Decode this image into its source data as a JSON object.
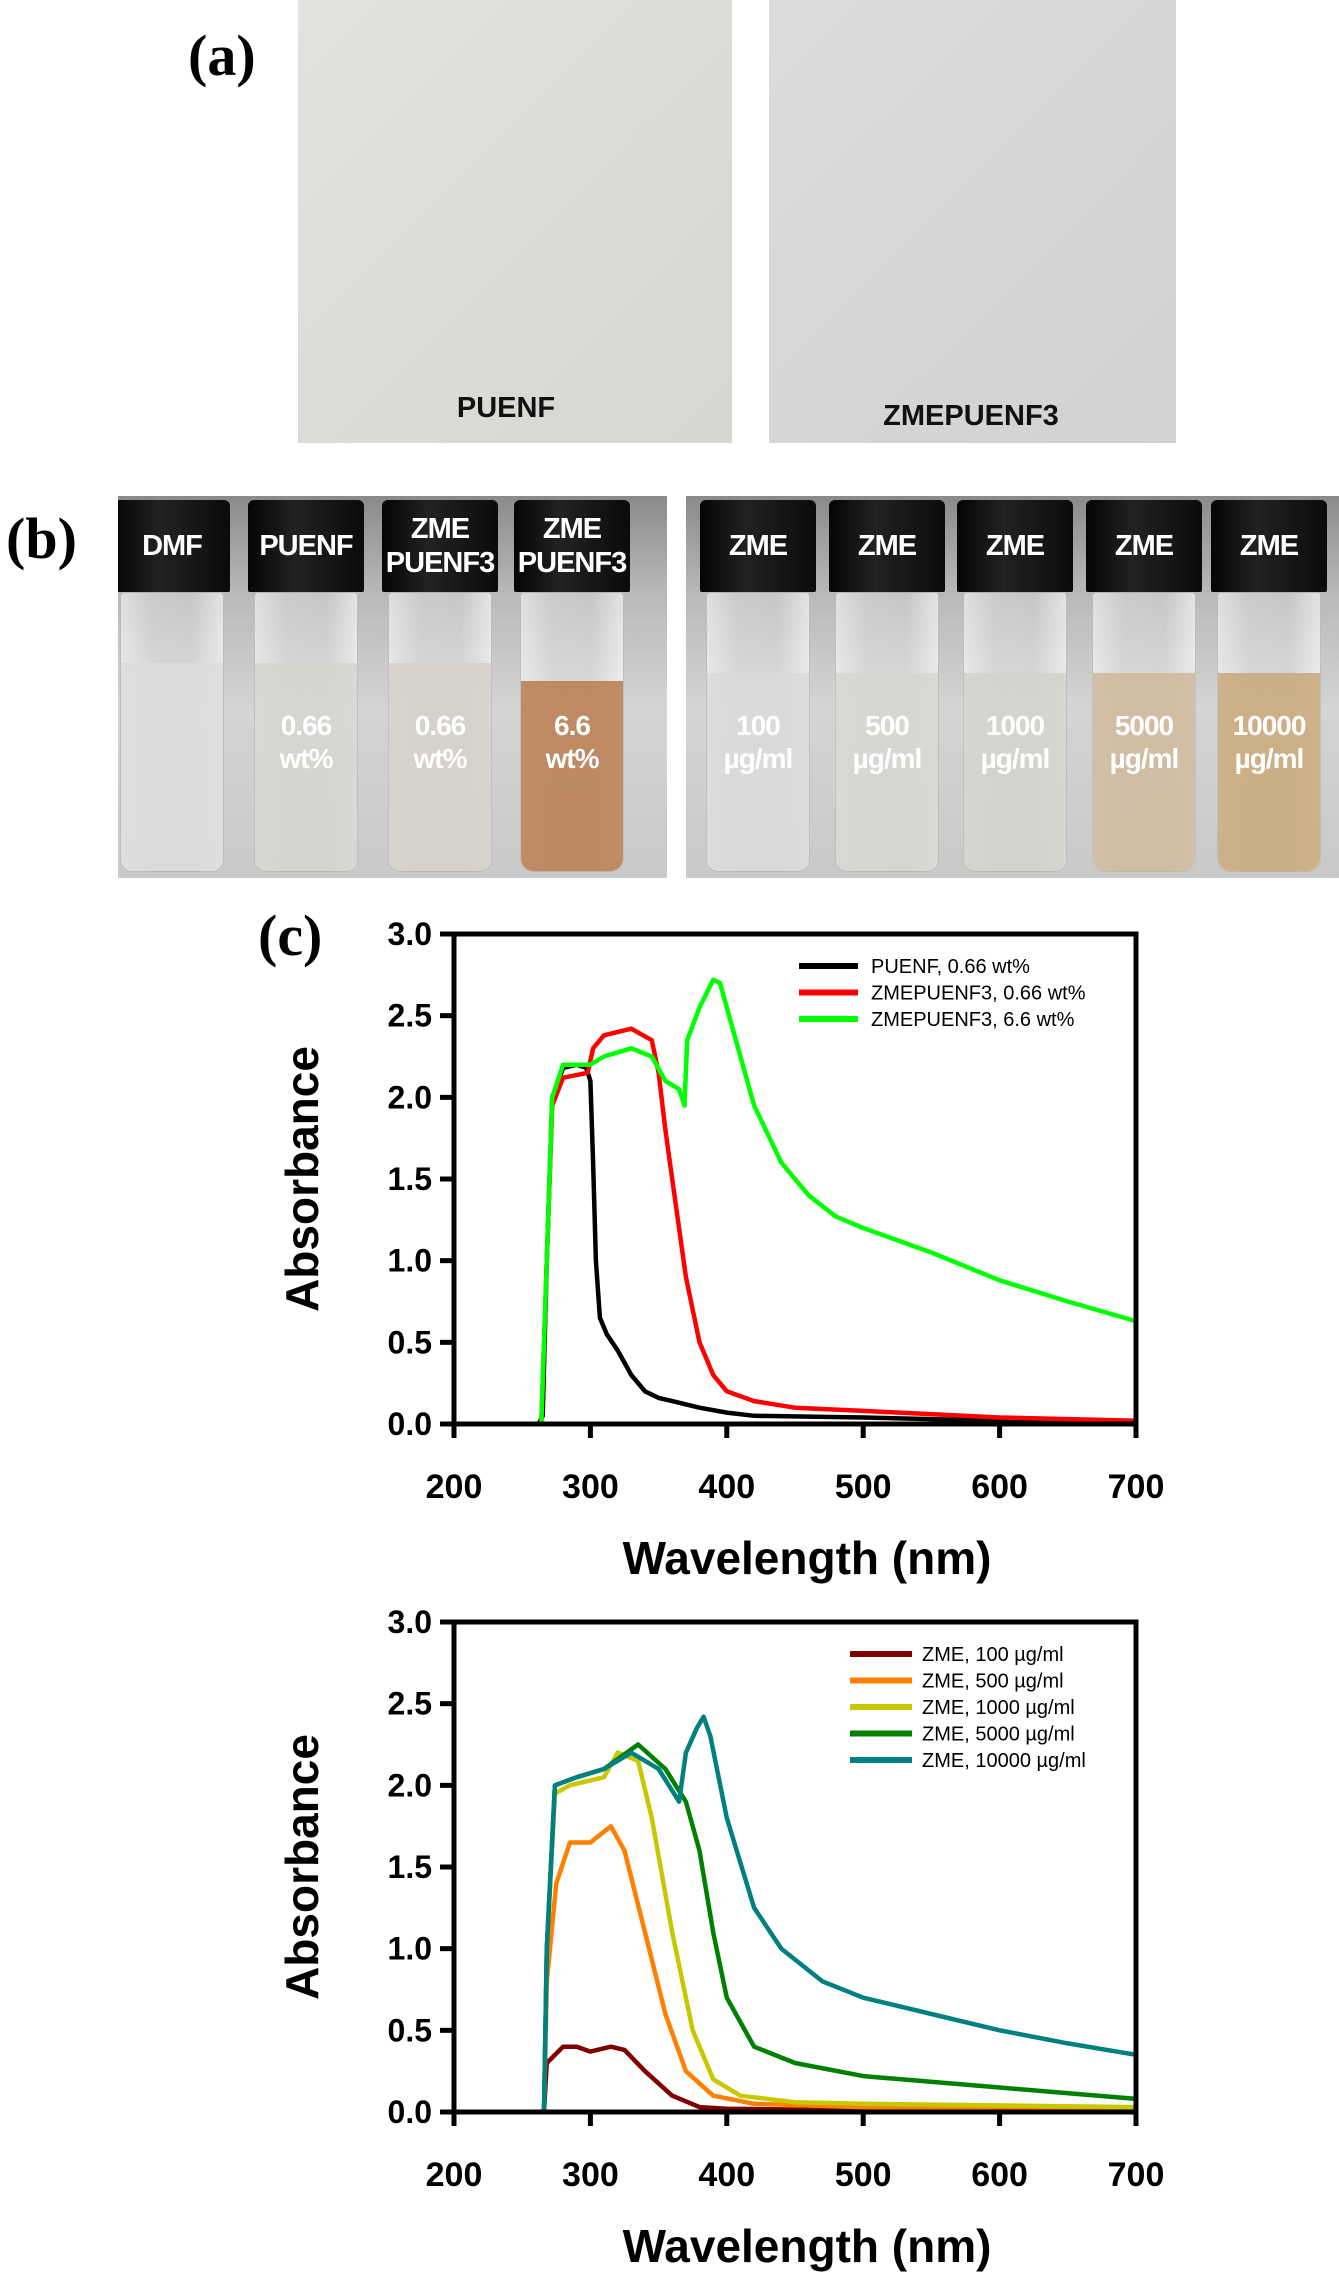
{
  "panel_labels": {
    "a": "(a)",
    "b": "(b)",
    "c": "(c)"
  },
  "panel_a": {
    "films": [
      {
        "label": "PUENF"
      },
      {
        "label": "ZMEPUENF3"
      }
    ]
  },
  "panel_b": {
    "left_vials": [
      {
        "cap": [
          "DMF"
        ],
        "label": [],
        "liquid_color": "#dcdcdc"
      },
      {
        "cap": [
          "PUENF"
        ],
        "label": [
          "0.66",
          "wt%"
        ],
        "liquid_color": "#d6d4cf"
      },
      {
        "cap": [
          "ZME",
          "PUENF3"
        ],
        "label": [
          "0.66",
          "wt%"
        ],
        "liquid_color": "#d3d0c8"
      },
      {
        "cap": [
          "ZME",
          "PUENF3"
        ],
        "label": [
          "6.6",
          "wt%"
        ],
        "liquid_color": "#b77b4e"
      }
    ],
    "right_vials": [
      {
        "cap": [
          "ZME"
        ],
        "label": [
          "100",
          "µg/ml"
        ],
        "liquid_color": "#d9d9d7"
      },
      {
        "cap": [
          "ZME"
        ],
        "label": [
          "500",
          "µg/ml"
        ],
        "liquid_color": "#d6d5d1"
      },
      {
        "cap": [
          "ZME"
        ],
        "label": [
          "1000",
          "µg/ml"
        ],
        "liquid_color": "#d3d1cb"
      },
      {
        "cap": [
          "ZME"
        ],
        "label": [
          "5000",
          "µg/ml"
        ],
        "liquid_color": "#cdb79a"
      },
      {
        "cap": [
          "ZME"
        ],
        "label": [
          "10000",
          "µg/ml"
        ],
        "liquid_color": "#c9a777"
      }
    ]
  },
  "chart_data": [
    {
      "type": "line",
      "xlabel": "Wavelength (nm)",
      "ylabel": "Absorbance",
      "xlim": [
        200,
        700
      ],
      "ylim": [
        0,
        3.0
      ],
      "xticks": [
        "200",
        "300",
        "400",
        "500",
        "600",
        "700"
      ],
      "yticks": [
        "0.0",
        "0.5",
        "1.0",
        "1.5",
        "2.0",
        "2.5",
        "3.0"
      ],
      "grid": false,
      "legend": "top-right",
      "series": [
        {
          "name": "PUENF, 0.66 wt%",
          "color": "#000000",
          "points": [
            [
              200,
              0
            ],
            [
              262,
              0
            ],
            [
              265,
              0.05
            ],
            [
              268,
              1.0
            ],
            [
              272,
              2.0
            ],
            [
              280,
              2.18
            ],
            [
              290,
              2.2
            ],
            [
              297,
              2.18
            ],
            [
              300,
              2.1
            ],
            [
              302,
              1.6
            ],
            [
              304,
              1.0
            ],
            [
              307,
              0.65
            ],
            [
              312,
              0.55
            ],
            [
              320,
              0.45
            ],
            [
              330,
              0.3
            ],
            [
              340,
              0.2
            ],
            [
              350,
              0.16
            ],
            [
              360,
              0.14
            ],
            [
              380,
              0.1
            ],
            [
              400,
              0.07
            ],
            [
              420,
              0.05
            ],
            [
              500,
              0.04
            ],
            [
              600,
              0.02
            ],
            [
              700,
              0.01
            ]
          ]
        },
        {
          "name": "ZMEPUENF3, 0.66 wt%",
          "color": "#ff0000",
          "points": [
            [
              200,
              0
            ],
            [
              264,
              0
            ],
            [
              268,
              1.0
            ],
            [
              272,
              1.95
            ],
            [
              280,
              2.12
            ],
            [
              298,
              2.15
            ],
            [
              302,
              2.3
            ],
            [
              310,
              2.38
            ],
            [
              330,
              2.42
            ],
            [
              345,
              2.35
            ],
            [
              350,
              2.15
            ],
            [
              355,
              1.8
            ],
            [
              360,
              1.5
            ],
            [
              370,
              0.9
            ],
            [
              380,
              0.5
            ],
            [
              390,
              0.3
            ],
            [
              400,
              0.2
            ],
            [
              420,
              0.14
            ],
            [
              450,
              0.1
            ],
            [
              500,
              0.08
            ],
            [
              600,
              0.04
            ],
            [
              700,
              0.02
            ]
          ]
        },
        {
          "name": "ZMEPUENF3, 6.6 wt%",
          "color": "#00ff00",
          "points": [
            [
              200,
              0
            ],
            [
              264,
              0
            ],
            [
              268,
              1.0
            ],
            [
              272,
              2.0
            ],
            [
              280,
              2.2
            ],
            [
              300,
              2.2
            ],
            [
              310,
              2.25
            ],
            [
              330,
              2.3
            ],
            [
              345,
              2.25
            ],
            [
              355,
              2.1
            ],
            [
              365,
              2.05
            ],
            [
              369,
              1.95
            ],
            [
              371,
              2.35
            ],
            [
              380,
              2.55
            ],
            [
              390,
              2.72
            ],
            [
              395,
              2.7
            ],
            [
              405,
              2.4
            ],
            [
              420,
              1.95
            ],
            [
              440,
              1.6
            ],
            [
              460,
              1.4
            ],
            [
              480,
              1.27
            ],
            [
              500,
              1.2
            ],
            [
              550,
              1.05
            ],
            [
              600,
              0.88
            ],
            [
              650,
              0.75
            ],
            [
              700,
              0.63
            ]
          ]
        }
      ]
    },
    {
      "type": "line",
      "xlabel": "Wavelength (nm)",
      "ylabel": "Absorbance",
      "xlim": [
        200,
        700
      ],
      "ylim": [
        0,
        3.0
      ],
      "xticks": [
        "200",
        "300",
        "400",
        "500",
        "600",
        "700"
      ],
      "yticks": [
        "0.0",
        "0.5",
        "1.0",
        "1.5",
        "2.0",
        "2.5",
        "3.0"
      ],
      "grid": false,
      "legend": "top-right",
      "series": [
        {
          "name": "ZME, 100 µg/ml",
          "color": "#800000",
          "points": [
            [
              200,
              0
            ],
            [
              266,
              0
            ],
            [
              268,
              0.3
            ],
            [
              280,
              0.4
            ],
            [
              290,
              0.4
            ],
            [
              300,
              0.37
            ],
            [
              315,
              0.4
            ],
            [
              325,
              0.38
            ],
            [
              340,
              0.25
            ],
            [
              360,
              0.1
            ],
            [
              380,
              0.03
            ],
            [
              400,
              0.02
            ],
            [
              500,
              0.01
            ],
            [
              700,
              0.01
            ]
          ]
        },
        {
          "name": "ZME, 500 µg/ml",
          "color": "#ff8000",
          "points": [
            [
              200,
              0
            ],
            [
              266,
              0
            ],
            [
              268,
              0.8
            ],
            [
              275,
              1.4
            ],
            [
              285,
              1.65
            ],
            [
              300,
              1.65
            ],
            [
              315,
              1.75
            ],
            [
              325,
              1.6
            ],
            [
              340,
              1.1
            ],
            [
              355,
              0.6
            ],
            [
              370,
              0.25
            ],
            [
              390,
              0.1
            ],
            [
              420,
              0.05
            ],
            [
              500,
              0.03
            ],
            [
              700,
              0.02
            ]
          ]
        },
        {
          "name": "ZME, 1000 µg/ml",
          "color": "#c8c800",
          "points": [
            [
              200,
              0
            ],
            [
              266,
              0
            ],
            [
              268,
              1.0
            ],
            [
              274,
              1.95
            ],
            [
              285,
              2.0
            ],
            [
              310,
              2.05
            ],
            [
              320,
              2.2
            ],
            [
              335,
              2.15
            ],
            [
              345,
              1.8
            ],
            [
              360,
              1.1
            ],
            [
              375,
              0.5
            ],
            [
              390,
              0.2
            ],
            [
              410,
              0.1
            ],
            [
              450,
              0.06
            ],
            [
              500,
              0.05
            ],
            [
              700,
              0.03
            ]
          ]
        },
        {
          "name": "ZME, 5000 µg/ml",
          "color": "#008000",
          "points": [
            [
              200,
              0
            ],
            [
              266,
              0
            ],
            [
              268,
              1.0
            ],
            [
              274,
              2.0
            ],
            [
              290,
              2.05
            ],
            [
              310,
              2.1
            ],
            [
              335,
              2.25
            ],
            [
              355,
              2.1
            ],
            [
              370,
              1.9
            ],
            [
              380,
              1.6
            ],
            [
              390,
              1.1
            ],
            [
              400,
              0.7
            ],
            [
              420,
              0.4
            ],
            [
              450,
              0.3
            ],
            [
              500,
              0.22
            ],
            [
              600,
              0.15
            ],
            [
              700,
              0.08
            ]
          ]
        },
        {
          "name": "ZME, 10000 µg/ml",
          "color": "#008080",
          "points": [
            [
              200,
              0
            ],
            [
              266,
              0
            ],
            [
              268,
              1.0
            ],
            [
              274,
              2.0
            ],
            [
              290,
              2.05
            ],
            [
              310,
              2.1
            ],
            [
              330,
              2.2
            ],
            [
              350,
              2.1
            ],
            [
              365,
              1.9
            ],
            [
              370,
              2.2
            ],
            [
              378,
              2.35
            ],
            [
              383,
              2.42
            ],
            [
              388,
              2.3
            ],
            [
              400,
              1.8
            ],
            [
              420,
              1.25
            ],
            [
              440,
              1.0
            ],
            [
              470,
              0.8
            ],
            [
              500,
              0.7
            ],
            [
              550,
              0.6
            ],
            [
              600,
              0.5
            ],
            [
              650,
              0.42
            ],
            [
              700,
              0.35
            ]
          ]
        }
      ]
    }
  ]
}
